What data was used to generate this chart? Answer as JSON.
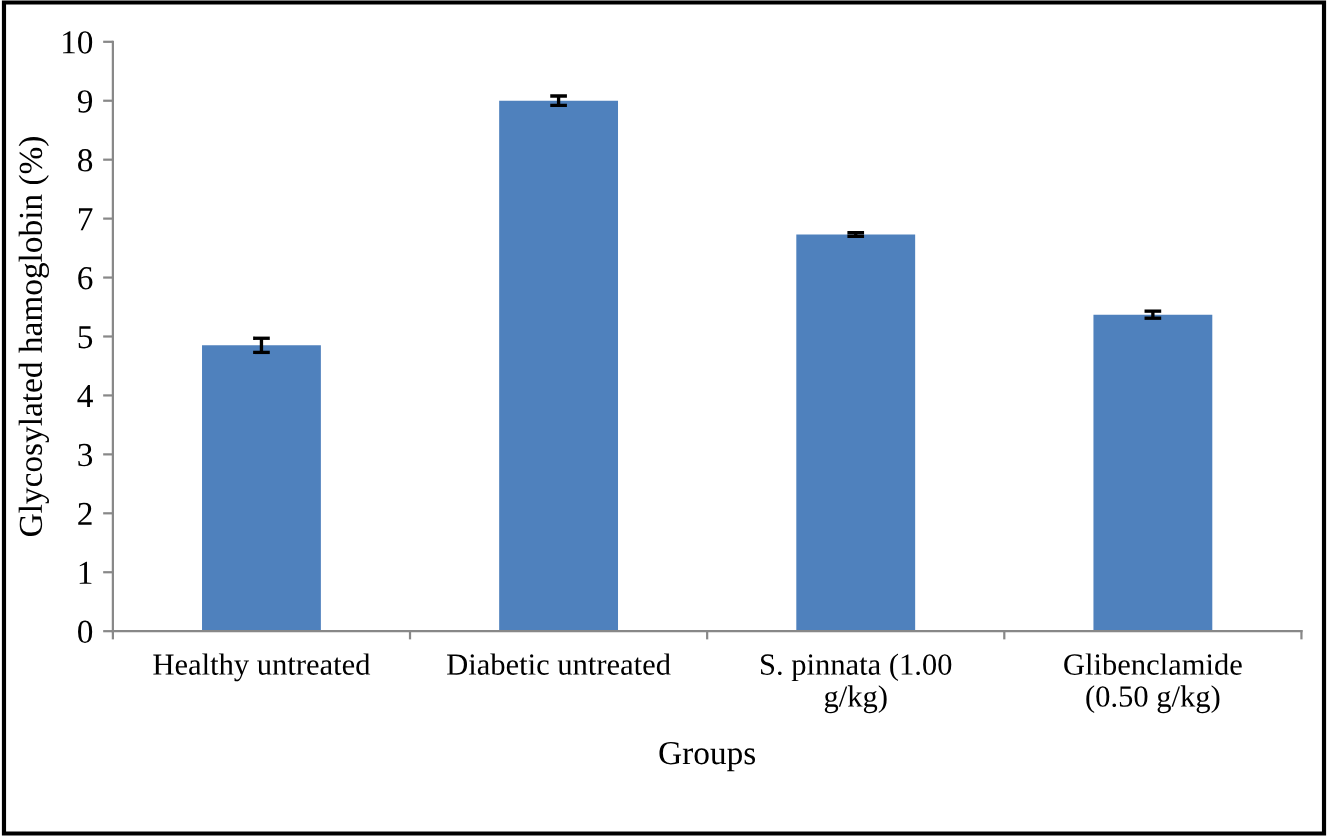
{
  "chart_data": {
    "type": "bar",
    "xlabel": "Groups",
    "ylabel": "Glycosylated hamoglobin (%)",
    "categories": [
      "Healthy untreated",
      "Diabetic untreated",
      "S. pinnata (1.00\ng/kg)",
      "Glibenclamide\n(0.50 g/kg)"
    ],
    "values": [
      4.85,
      9.0,
      6.73,
      5.37
    ],
    "errors": [
      0.12,
      0.08,
      0.03,
      0.06
    ],
    "color": "#4f81bd",
    "ylim": [
      0,
      10
    ],
    "yticks": [
      0,
      1,
      2,
      3,
      4,
      5,
      6,
      7,
      8,
      9,
      10
    ],
    "grid": false,
    "legend": false
  }
}
